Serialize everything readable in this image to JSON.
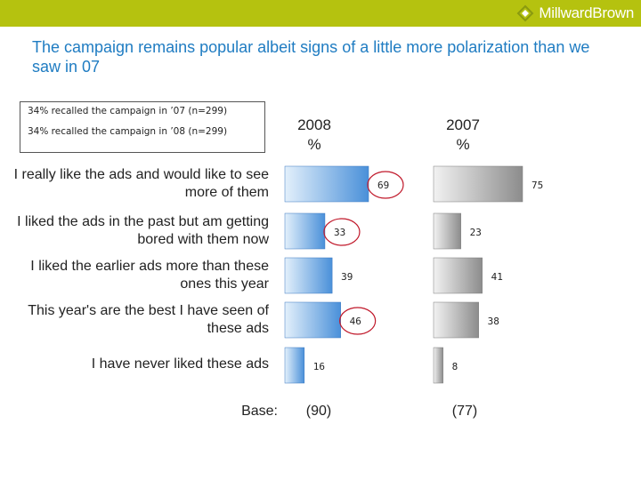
{
  "header": {
    "brand": "MillwardBrown",
    "brand_icon": "millward-brown-logo-icon"
  },
  "title": "The campaign remains popular albeit signs of a little more polarization than we saw in 07",
  "legend": {
    "line1": "34% recalled the campaign in ’07 (n=299)",
    "line2": "34% recalled the campaign in ’08 (n=299)"
  },
  "columns": [
    {
      "year": "2008",
      "unit": "%"
    },
    {
      "year": "2007",
      "unit": "%"
    }
  ],
  "base": {
    "label": "Base:",
    "values": [
      "(90)",
      "(77)"
    ]
  },
  "chart_data": {
    "type": "bar",
    "orientation": "horizontal",
    "categories": [
      "I really like the ads and would like to see more of them",
      "I liked the ads in the past but am getting bored with them now",
      "I liked the earlier ads more than these ones this year",
      "This year's are the best I have seen of these ads",
      "I have never liked these ads"
    ],
    "series": [
      {
        "name": "2008",
        "values": [
          69,
          33,
          39,
          46,
          16
        ],
        "color": "#6aaee8",
        "circled": [
          true,
          true,
          false,
          true,
          false
        ]
      },
      {
        "name": "2007",
        "values": [
          75,
          23,
          41,
          38,
          8
        ],
        "color": "#a8a8a8",
        "circled": [
          false,
          false,
          false,
          false,
          false
        ]
      }
    ],
    "xlim": [
      0,
      100
    ],
    "circle_color": "#c0182a"
  }
}
